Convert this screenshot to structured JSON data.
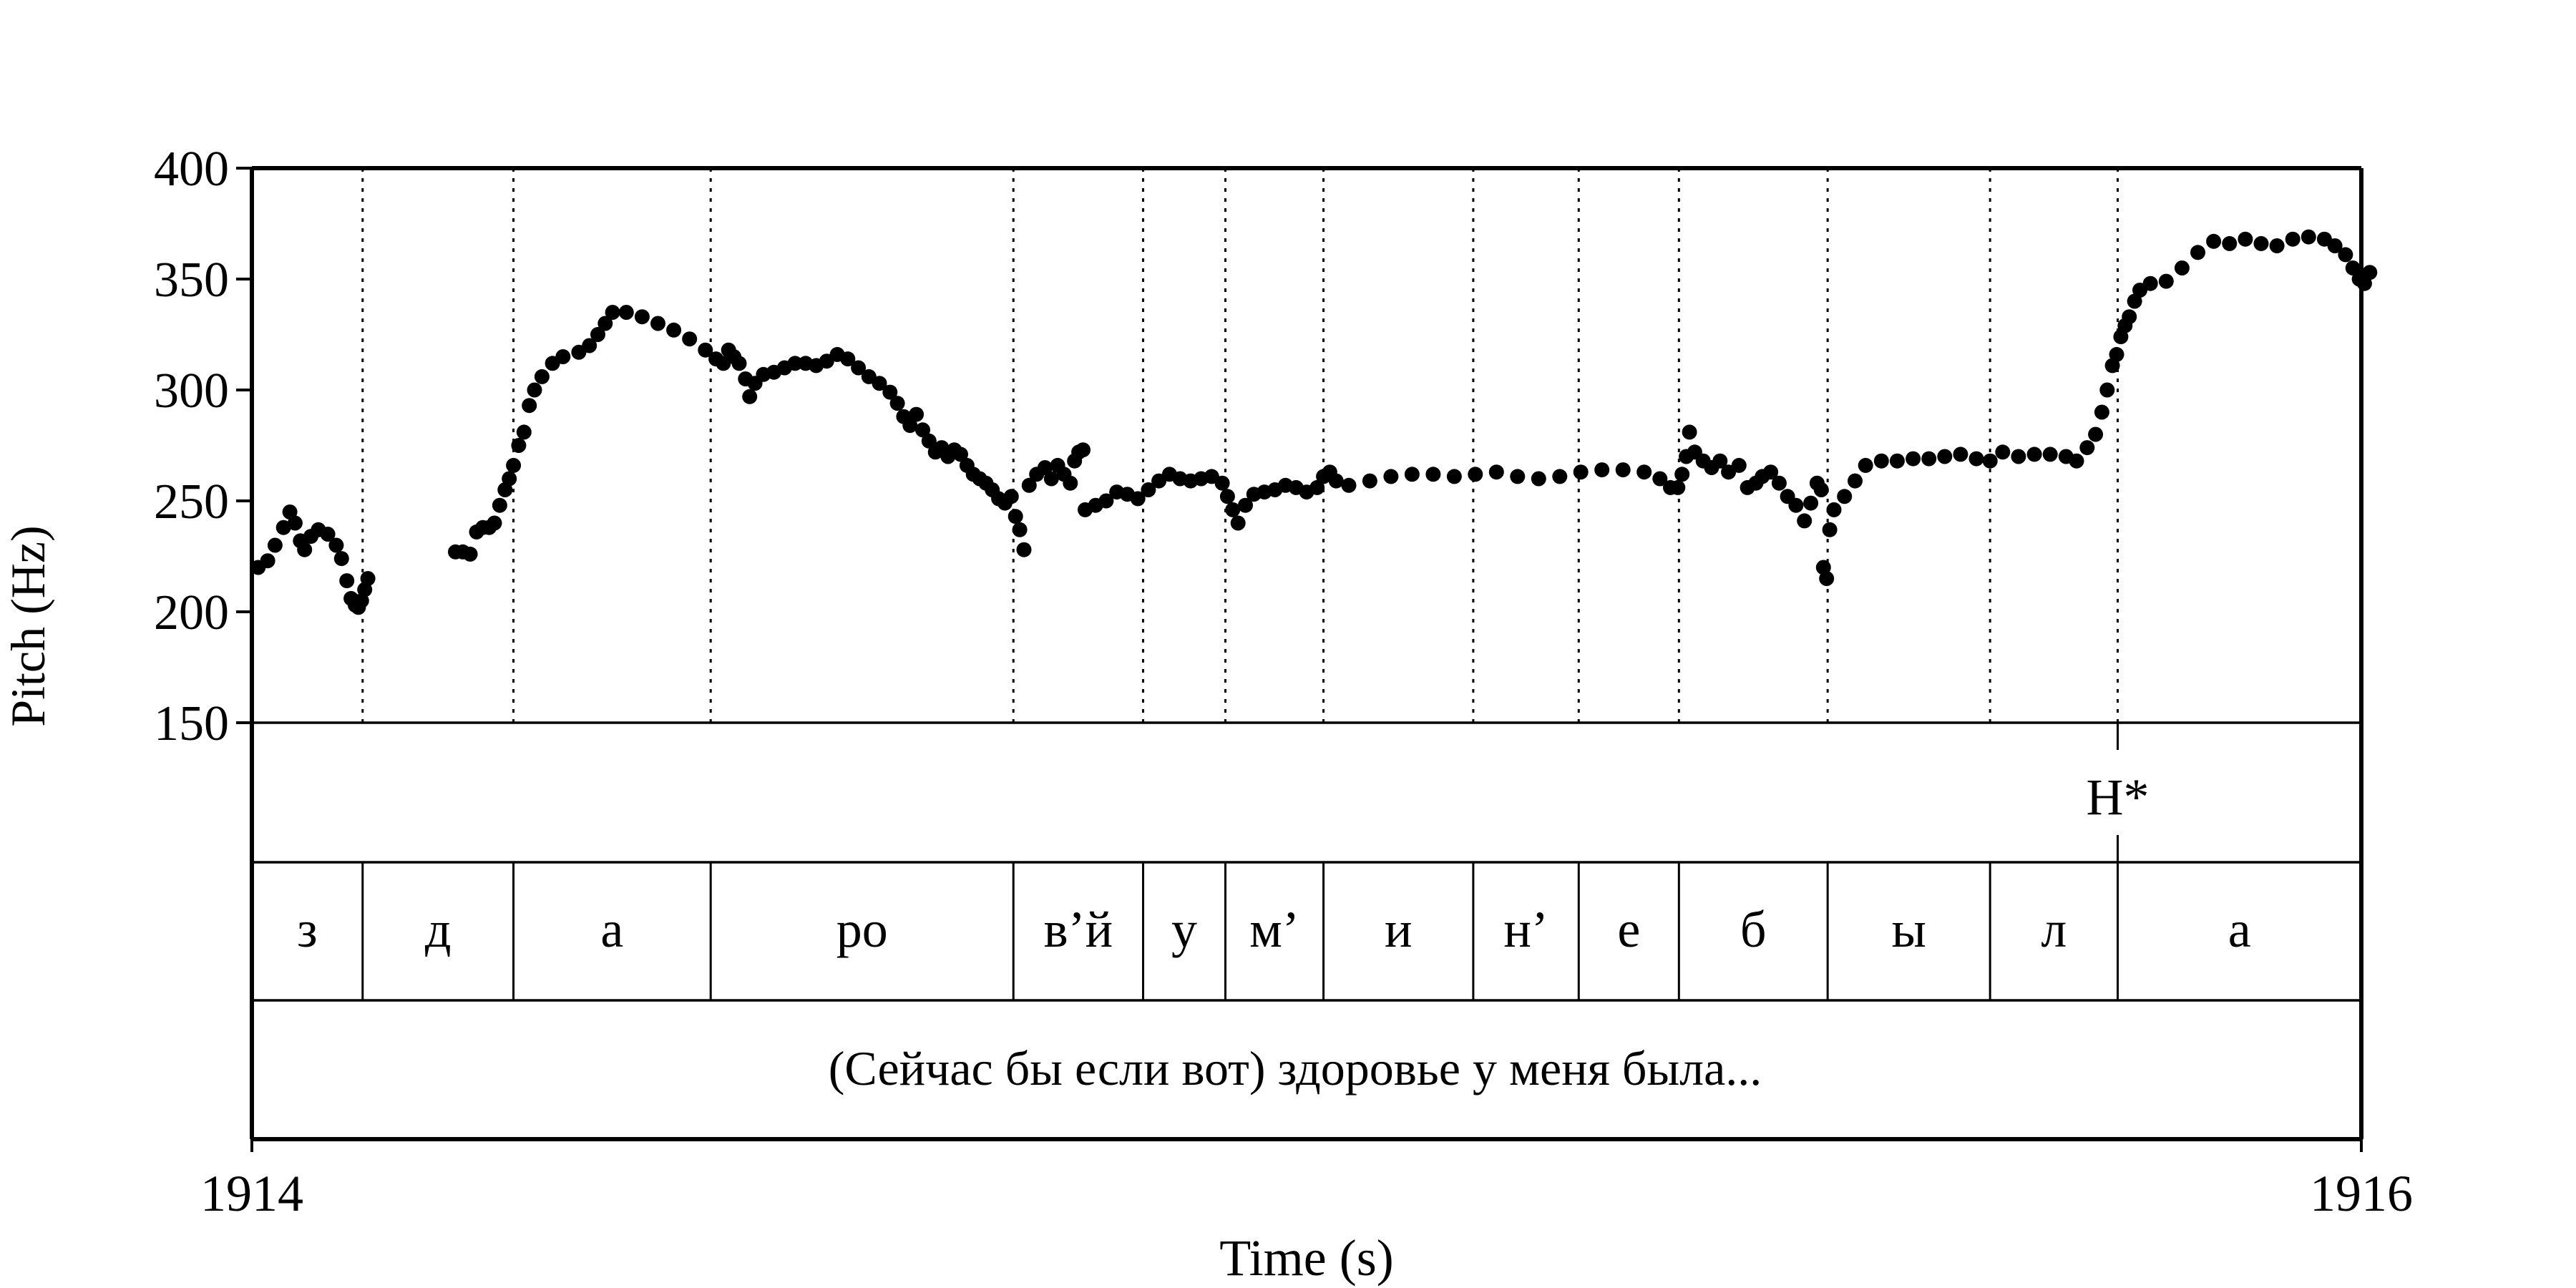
{
  "chart_data": {
    "type": "scatter",
    "title": "",
    "xlabel": "Time (s)",
    "ylabel": "Pitch (Hz)",
    "xlim": [
      1914,
      1916
    ],
    "ylim": [
      150,
      400
    ],
    "x_ticks": [
      "1914",
      "1916"
    ],
    "y_ticks": [
      150,
      200,
      250,
      300,
      350,
      400
    ],
    "grid": false,
    "point_color": "#000000",
    "segment_boundaries": [
      1914.105,
      1914.248,
      1914.435,
      1914.722,
      1914.845,
      1914.923,
      1915.016,
      1915.158,
      1915.258,
      1915.353,
      1915.494,
      1915.648,
      1915.769
    ],
    "tone_tier": [
      {
        "label": "H*",
        "time": 1915.769
      }
    ],
    "segment_tier": [
      {
        "label": "з",
        "start": 1914.0,
        "end": 1914.105
      },
      {
        "label": "д",
        "start": 1914.105,
        "end": 1914.248
      },
      {
        "label": "а",
        "start": 1914.248,
        "end": 1914.435
      },
      {
        "label": "ро",
        "start": 1914.435,
        "end": 1914.722
      },
      {
        "label": "в’й",
        "start": 1914.722,
        "end": 1914.845
      },
      {
        "label": "у",
        "start": 1914.845,
        "end": 1914.923
      },
      {
        "label": "м’",
        "start": 1914.923,
        "end": 1915.016
      },
      {
        "label": "и",
        "start": 1915.016,
        "end": 1915.158
      },
      {
        "label": "н’",
        "start": 1915.158,
        "end": 1915.258
      },
      {
        "label": "е",
        "start": 1915.258,
        "end": 1915.353
      },
      {
        "label": "б",
        "start": 1915.353,
        "end": 1915.494
      },
      {
        "label": "ы",
        "start": 1915.494,
        "end": 1915.648
      },
      {
        "label": "л",
        "start": 1915.648,
        "end": 1915.769
      },
      {
        "label": "а",
        "start": 1915.769,
        "end": 1916.0
      }
    ],
    "text_tier": "(Сейчас бы если вот) здоровье у меня была...",
    "series": [
      {
        "name": "",
        "segments": [
          [
            [
              1914.006,
              220
            ],
            [
              1914.015,
              223
            ],
            [
              1914.022,
              230
            ],
            [
              1914.03,
              238
            ],
            [
              1914.036,
              245
            ],
            [
              1914.041,
              240
            ],
            [
              1914.046,
              232
            ],
            [
              1914.05,
              228
            ],
            [
              1914.056,
              234
            ],
            [
              1914.063,
              237
            ],
            [
              1914.072,
              235
            ],
            [
              1914.08,
              230
            ],
            [
              1914.085,
              224
            ],
            [
              1914.09,
              214
            ],
            [
              1914.094,
              206
            ],
            [
              1914.098,
              203
            ],
            [
              1914.101,
              202
            ],
            [
              1914.104,
              205
            ],
            [
              1914.107,
              210
            ],
            [
              1914.11,
              215
            ]
          ],
          [
            [
              1914.193,
              227
            ],
            [
              1914.2,
              227
            ],
            [
              1914.207,
              226
            ],
            [
              1914.213,
              236
            ],
            [
              1914.219,
              238
            ],
            [
              1914.225,
              238
            ],
            [
              1914.23,
              240
            ],
            [
              1914.235,
              248
            ],
            [
              1914.24,
              255
            ],
            [
              1914.244,
              260
            ],
            [
              1914.248,
              266
            ],
            [
              1914.253,
              275
            ],
            [
              1914.258,
              281
            ],
            [
              1914.263,
              293
            ],
            [
              1914.268,
              300
            ],
            [
              1914.275,
              306
            ],
            [
              1914.285,
              312
            ],
            [
              1914.295,
              315
            ],
            [
              1914.31,
              317
            ],
            [
              1914.32,
              320
            ],
            [
              1914.328,
              325
            ],
            [
              1914.335,
              330
            ],
            [
              1914.342,
              335
            ],
            [
              1914.355,
              335
            ],
            [
              1914.37,
              333
            ],
            [
              1914.385,
              330
            ],
            [
              1914.4,
              327
            ],
            [
              1914.415,
              323
            ],
            [
              1914.43,
              318
            ],
            [
              1914.44,
              314
            ],
            [
              1914.447,
              312
            ],
            [
              1914.452,
              318
            ],
            [
              1914.457,
              315
            ],
            [
              1914.462,
              312
            ],
            [
              1914.468,
              305
            ],
            [
              1914.472,
              297
            ],
            [
              1914.477,
              303
            ],
            [
              1914.485,
              307
            ],
            [
              1914.495,
              308
            ],
            [
              1914.505,
              310
            ],
            [
              1914.515,
              312
            ],
            [
              1914.525,
              312
            ],
            [
              1914.535,
              311
            ],
            [
              1914.545,
              313
            ],
            [
              1914.555,
              316
            ],
            [
              1914.565,
              314
            ],
            [
              1914.575,
              310
            ],
            [
              1914.585,
              306
            ],
            [
              1914.595,
              303
            ],
            [
              1914.605,
              299
            ],
            [
              1914.612,
              294
            ],
            [
              1914.618,
              288
            ],
            [
              1914.624,
              284
            ],
            [
              1914.63,
              289
            ],
            [
              1914.636,
              282
            ],
            [
              1914.642,
              277
            ],
            [
              1914.648,
              272
            ],
            [
              1914.654,
              274
            ],
            [
              1914.66,
              270
            ],
            [
              1914.666,
              273
            ],
            [
              1914.672,
              271
            ],
            [
              1914.678,
              266
            ],
            [
              1914.684,
              262
            ],
            [
              1914.69,
              260
            ],
            [
              1914.696,
              258
            ],
            [
              1914.702,
              255
            ],
            [
              1914.708,
              251
            ],
            [
              1914.714,
              249
            ],
            [
              1914.72,
              252
            ],
            [
              1914.724,
              243
            ],
            [
              1914.728,
              237
            ],
            [
              1914.732,
              228
            ]
          ],
          [
            [
              1914.737,
              257
            ],
            [
              1914.744,
              262
            ],
            [
              1914.752,
              265
            ],
            [
              1914.758,
              260
            ],
            [
              1914.764,
              266
            ],
            [
              1914.77,
              262
            ],
            [
              1914.776,
              258
            ],
            [
              1914.78,
              268
            ],
            [
              1914.784,
              272
            ],
            [
              1914.788,
              273
            ]
          ],
          [
            [
              1914.79,
              246
            ],
            [
              1914.8,
              248
            ],
            [
              1914.81,
              250
            ],
            [
              1914.82,
              254
            ],
            [
              1914.83,
              253
            ],
            [
              1914.84,
              251
            ],
            [
              1914.85,
              255
            ],
            [
              1914.86,
              259
            ],
            [
              1914.87,
              262
            ],
            [
              1914.88,
              260
            ],
            [
              1914.89,
              259
            ],
            [
              1914.9,
              260
            ],
            [
              1914.91,
              261
            ],
            [
              1914.92,
              258
            ],
            [
              1914.925,
              252
            ],
            [
              1914.93,
              246
            ],
            [
              1914.935,
              240
            ],
            [
              1914.942,
              248
            ],
            [
              1914.95,
              253
            ],
            [
              1914.96,
              254
            ],
            [
              1914.97,
              255
            ],
            [
              1914.98,
              257
            ],
            [
              1914.99,
              256
            ],
            [
              1915.0,
              254
            ],
            [
              1915.01,
              256
            ],
            [
              1915.016,
              261
            ],
            [
              1915.022,
              263
            ],
            [
              1915.028,
              259
            ],
            [
              1915.04,
              257
            ],
            [
              1915.06,
              259
            ],
            [
              1915.08,
              261
            ],
            [
              1915.1,
              262
            ],
            [
              1915.12,
              262
            ],
            [
              1915.14,
              261
            ],
            [
              1915.16,
              262
            ],
            [
              1915.18,
              263
            ],
            [
              1915.2,
              261
            ],
            [
              1915.22,
              260
            ],
            [
              1915.24,
              261
            ],
            [
              1915.26,
              263
            ],
            [
              1915.28,
              264
            ],
            [
              1915.3,
              264
            ],
            [
              1915.32,
              263
            ],
            [
              1915.335,
              260
            ],
            [
              1915.345,
              256
            ],
            [
              1915.352,
              256
            ],
            [
              1915.356,
              262
            ],
            [
              1915.36,
              270
            ],
            [
              1915.363,
              281
            ],
            [
              1915.368,
              272
            ],
            [
              1915.376,
              268
            ],
            [
              1915.384,
              265
            ],
            [
              1915.392,
              268
            ],
            [
              1915.4,
              263
            ],
            [
              1915.41,
              266
            ],
            [
              1915.418,
              256
            ],
            [
              1915.426,
              258
            ],
            [
              1915.432,
              261
            ],
            [
              1915.44,
              263
            ],
            [
              1915.448,
              258
            ],
            [
              1915.456,
              252
            ],
            [
              1915.464,
              248
            ],
            [
              1915.472,
              241
            ],
            [
              1915.478,
              249
            ],
            [
              1915.484,
              258
            ],
            [
              1915.488,
              255
            ],
            [
              1915.49,
              220
            ],
            [
              1915.493,
              215
            ],
            [
              1915.496,
              237
            ],
            [
              1915.5,
              246
            ],
            [
              1915.51,
              252
            ],
            [
              1915.52,
              259
            ],
            [
              1915.53,
              266
            ],
            [
              1915.545,
              268
            ],
            [
              1915.56,
              268
            ],
            [
              1915.575,
              269
            ],
            [
              1915.59,
              269
            ],
            [
              1915.605,
              270
            ],
            [
              1915.62,
              271
            ],
            [
              1915.635,
              269
            ],
            [
              1915.648,
              268
            ],
            [
              1915.66,
              272
            ],
            [
              1915.675,
              270
            ],
            [
              1915.69,
              271
            ],
            [
              1915.705,
              271
            ],
            [
              1915.72,
              270
            ],
            [
              1915.73,
              268
            ],
            [
              1915.74,
              274
            ],
            [
              1915.748,
              280
            ],
            [
              1915.754,
              290
            ],
            [
              1915.759,
              300
            ],
            [
              1915.764,
              311
            ],
            [
              1915.768,
              316
            ],
            [
              1915.772,
              324
            ],
            [
              1915.776,
              329
            ],
            [
              1915.78,
              333
            ],
            [
              1915.785,
              340
            ],
            [
              1915.79,
              345
            ],
            [
              1915.8,
              348
            ],
            [
              1915.815,
              349
            ],
            [
              1915.83,
              355
            ],
            [
              1915.845,
              362
            ],
            [
              1915.86,
              367
            ],
            [
              1915.875,
              366
            ],
            [
              1915.89,
              368
            ],
            [
              1915.905,
              366
            ],
            [
              1915.92,
              365
            ],
            [
              1915.935,
              368
            ],
            [
              1915.95,
              369
            ],
            [
              1915.965,
              368
            ],
            [
              1915.975,
              365
            ],
            [
              1915.985,
              361
            ],
            [
              1915.992,
              355
            ],
            [
              1915.998,
              350
            ],
            [
              1916.003,
              348
            ],
            [
              1916.008,
              353
            ]
          ]
        ]
      }
    ]
  }
}
